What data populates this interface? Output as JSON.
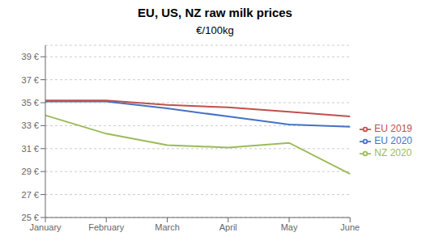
{
  "chart_data": {
    "type": "line",
    "title": "EU, US, NZ raw milk prices",
    "subtitle": "€/100kg",
    "categories": [
      "January",
      "February",
      "March",
      "April",
      "May",
      "June"
    ],
    "series": [
      {
        "name": "EU 2020",
        "color": "#4472C4",
        "values": [
          35.1,
          35.1,
          34.5,
          33.8,
          33.1,
          32.9
        ]
      },
      {
        "name": "EU 2019",
        "color": "#C0504D",
        "values": [
          35.2,
          35.2,
          34.8,
          34.6,
          34.2,
          33.8
        ]
      },
      {
        "name": "NZ 2020",
        "color": "#9BBB59",
        "values": [
          33.9,
          32.3,
          31.3,
          31.1,
          31.5,
          28.8
        ]
      }
    ],
    "ylim": [
      25,
      40
    ],
    "yticks": [
      {
        "value": 25,
        "label": "25 €"
      },
      {
        "value": 27,
        "label": "27 €"
      },
      {
        "value": 29,
        "label": "29 €"
      },
      {
        "value": 31,
        "label": "31 €"
      },
      {
        "value": 33,
        "label": "33 €"
      },
      {
        "value": 35,
        "label": "35 €"
      },
      {
        "value": 37,
        "label": "37 €"
      },
      {
        "value": 39,
        "label": "39 €"
      }
    ],
    "grid": true,
    "legend": "right"
  }
}
